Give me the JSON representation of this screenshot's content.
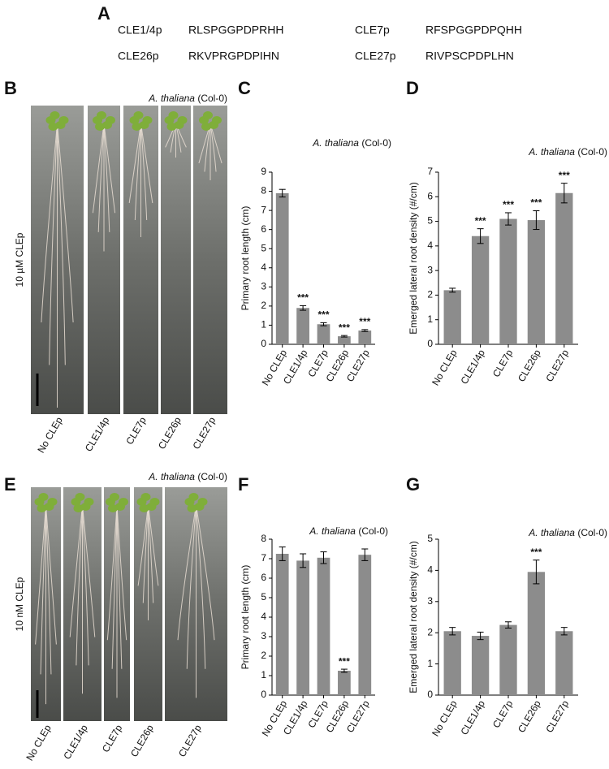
{
  "panel_labels": [
    "A",
    "B",
    "C",
    "D",
    "E",
    "F",
    "G"
  ],
  "peptides": [
    {
      "name": "CLE1/4p",
      "sequence": "RLSPGGPDPRHH"
    },
    {
      "name": "CLE7p",
      "sequence": "RFSPGGPDPQHH"
    },
    {
      "name": "CLE26p",
      "sequence": "RKVPRGPDPIHN"
    },
    {
      "name": "CLE27p",
      "sequence": "RIVPSCPDPLHN"
    }
  ],
  "photos": [
    {
      "title_species": "A. thaliana",
      "title_strain": "(Col-0)",
      "treatment": "10 µM CLEp",
      "categories": [
        "No CLEp",
        "CLE1/4p",
        "CLE7p",
        "CLE26p",
        "CLE27p"
      ]
    },
    {
      "title_species": "A. thaliana",
      "title_strain": "(Col-0)",
      "treatment": "10 nM CLEp",
      "categories": [
        "No CLEp",
        "CLE1/4p",
        "CLE7p",
        "CLE26p",
        "CLE27p"
      ]
    }
  ],
  "chart_data": [
    {
      "type": "bar",
      "title_species": "A. thaliana",
      "title_strain": "(Col-0)",
      "y_label": "Primary root length (cm)",
      "categories": [
        "No CLEp",
        "CLE1/4p",
        "CLE7p",
        "CLE26p",
        "CLE27p"
      ],
      "values": [
        7.9,
        1.9,
        1.05,
        0.42,
        0.72
      ],
      "errors": [
        0.2,
        0.12,
        0.08,
        0.04,
        0.05
      ],
      "annotations": [
        null,
        "***",
        "***",
        "***",
        "***"
      ],
      "color": "#8c8c8c",
      "ylim": [
        0,
        9
      ],
      "yticks": [
        0,
        1,
        2,
        3,
        4,
        5,
        6,
        7,
        8,
        9
      ]
    },
    {
      "type": "bar",
      "title_species": "A. thaliana",
      "title_strain": "(Col-0)",
      "y_label": "Emerged lateral root density (#/cm)",
      "categories": [
        "No CLEp",
        "CLE1/4p",
        "CLE7p",
        "CLE26p",
        "CLE27p"
      ],
      "values": [
        2.2,
        4.4,
        5.1,
        5.05,
        6.15
      ],
      "errors": [
        0.08,
        0.3,
        0.25,
        0.38,
        0.4
      ],
      "annotations": [
        null,
        "***",
        "***",
        "***",
        "***"
      ],
      "color": "#8c8c8c",
      "ylim": [
        0,
        7
      ],
      "yticks": [
        0,
        1,
        2,
        3,
        4,
        5,
        6,
        7
      ]
    },
    {
      "type": "bar",
      "title_species": "A. thaliana",
      "title_strain": "(Col-0)",
      "y_label": "Primary root length (cm)",
      "categories": [
        "No CLEp",
        "CLE1/4p",
        "CLE7p",
        "CLE26p",
        "CLE27p"
      ],
      "values": [
        7.25,
        6.9,
        7.05,
        1.25,
        7.2
      ],
      "errors": [
        0.35,
        0.35,
        0.3,
        0.08,
        0.3
      ],
      "annotations": [
        null,
        null,
        null,
        "***",
        null
      ],
      "color": "#8c8c8c",
      "ylim": [
        0,
        8
      ],
      "yticks": [
        0,
        1,
        2,
        3,
        4,
        5,
        6,
        7,
        8
      ]
    },
    {
      "type": "bar",
      "title_species": "A. thaliana",
      "title_strain": "(Col-0)",
      "y_label": "Emerged lateral root density (#/cm)",
      "categories": [
        "No CLEp",
        "CLE1/4p",
        "CLE7p",
        "CLE26p",
        "CLE27p"
      ],
      "values": [
        2.05,
        1.9,
        2.25,
        3.95,
        2.05
      ],
      "errors": [
        0.12,
        0.12,
        0.1,
        0.38,
        0.12
      ],
      "annotations": [
        null,
        null,
        null,
        "***",
        null
      ],
      "color": "#8c8c8c",
      "ylim": [
        0,
        5
      ],
      "yticks": [
        0,
        1,
        2,
        3,
        4,
        5
      ]
    }
  ]
}
